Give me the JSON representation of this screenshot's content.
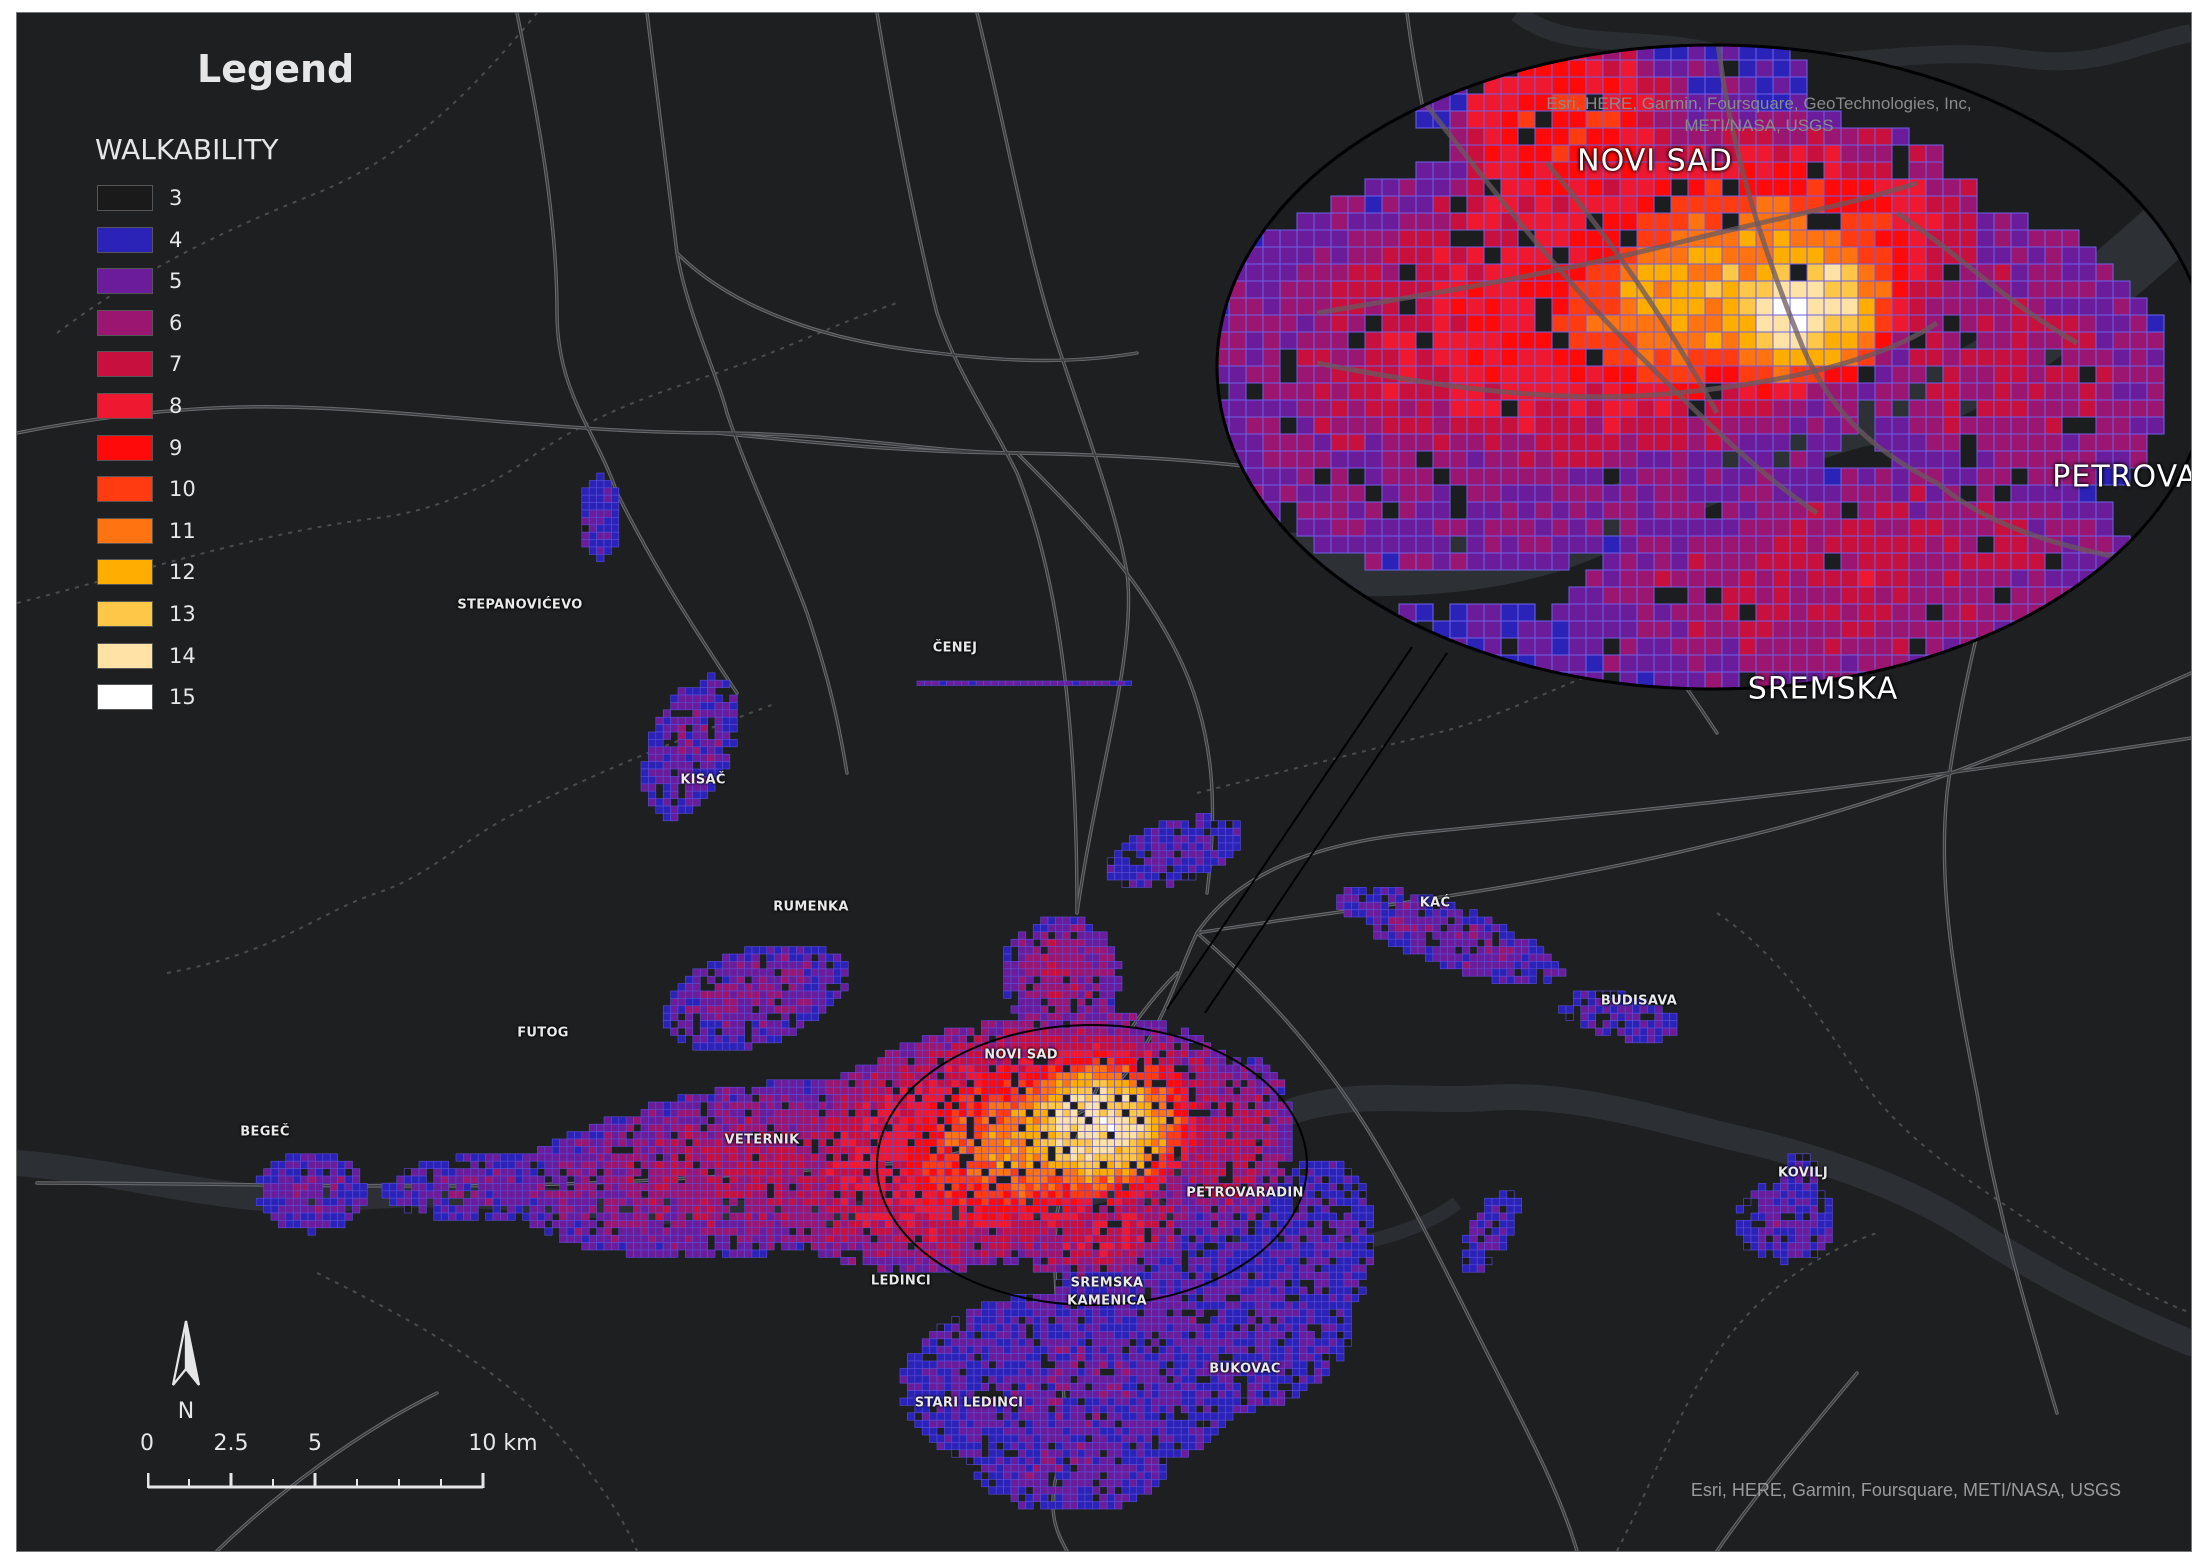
{
  "legend": {
    "title": "Legend",
    "field": "WALKABILITY",
    "classes": [
      {
        "value": 3,
        "label": "3",
        "color": "#1a1a1a"
      },
      {
        "value": 4,
        "label": "4",
        "color": "#2b22b8"
      },
      {
        "value": 5,
        "label": "5",
        "color": "#6a1c9a"
      },
      {
        "value": 6,
        "label": "6",
        "color": "#9a1670"
      },
      {
        "value": 7,
        "label": "7",
        "color": "#c8103f"
      },
      {
        "value": 8,
        "label": "8",
        "color": "#ee1830"
      },
      {
        "value": 9,
        "label": "9",
        "color": "#ff0a0a"
      },
      {
        "value": 10,
        "label": "10",
        "color": "#ff3b12"
      },
      {
        "value": 11,
        "label": "11",
        "color": "#ff7410"
      },
      {
        "value": 12,
        "label": "12",
        "color": "#ffad00"
      },
      {
        "value": 13,
        "label": "13",
        "color": "#ffc747"
      },
      {
        "value": 14,
        "label": "14",
        "color": "#ffe3a6"
      },
      {
        "value": 15,
        "label": "15",
        "color": "#ffffff"
      }
    ]
  },
  "places": [
    {
      "id": "stepanovicevo",
      "label": "STEPANOVIĆEVO"
    },
    {
      "id": "cenej",
      "label": "ČENEJ"
    },
    {
      "id": "kisac",
      "label": "KISAČ"
    },
    {
      "id": "rumenka",
      "label": "RUMENKA"
    },
    {
      "id": "kac",
      "label": "KAĆ"
    },
    {
      "id": "futog",
      "label": "FUTOG"
    },
    {
      "id": "novi-sad",
      "label": "NOVI SAD"
    },
    {
      "id": "budisava",
      "label": "BUDISAVA"
    },
    {
      "id": "begec",
      "label": "BEGEČ"
    },
    {
      "id": "veternik",
      "label": "VETERNIK"
    },
    {
      "id": "kovilj",
      "label": "KOVILJ"
    },
    {
      "id": "petrovaradin",
      "label": "PETROVARADIN"
    },
    {
      "id": "ledinci",
      "label": "LEDINCI"
    },
    {
      "id": "sremska-kamenica-1",
      "label": "SREMSKA"
    },
    {
      "id": "sremska-kamenica-2",
      "label": "KAMENICA"
    },
    {
      "id": "bukovac",
      "label": "BUKOVAC"
    },
    {
      "id": "stari-ledinci",
      "label": "STARI LEDINCI"
    }
  ],
  "inset": {
    "labels": [
      {
        "id": "novi-sad",
        "label": "NOVI SAD"
      },
      {
        "id": "petrovaradin",
        "label": "PETROVA"
      },
      {
        "id": "sremska",
        "label": "SREMSKA"
      }
    ],
    "attribution": "Esri, HERE, Garmin, Foursquare, GeoTechnologies, Inc, METI/NASA, USGS"
  },
  "attribution": "Esri, HERE, Garmin, Foursquare, METI/NASA, USGS",
  "north_arrow": {
    "label": "N"
  },
  "scale_bar": {
    "unit": "km",
    "ticks": [
      "0",
      "2.5",
      "5",
      "10 km"
    ]
  }
}
